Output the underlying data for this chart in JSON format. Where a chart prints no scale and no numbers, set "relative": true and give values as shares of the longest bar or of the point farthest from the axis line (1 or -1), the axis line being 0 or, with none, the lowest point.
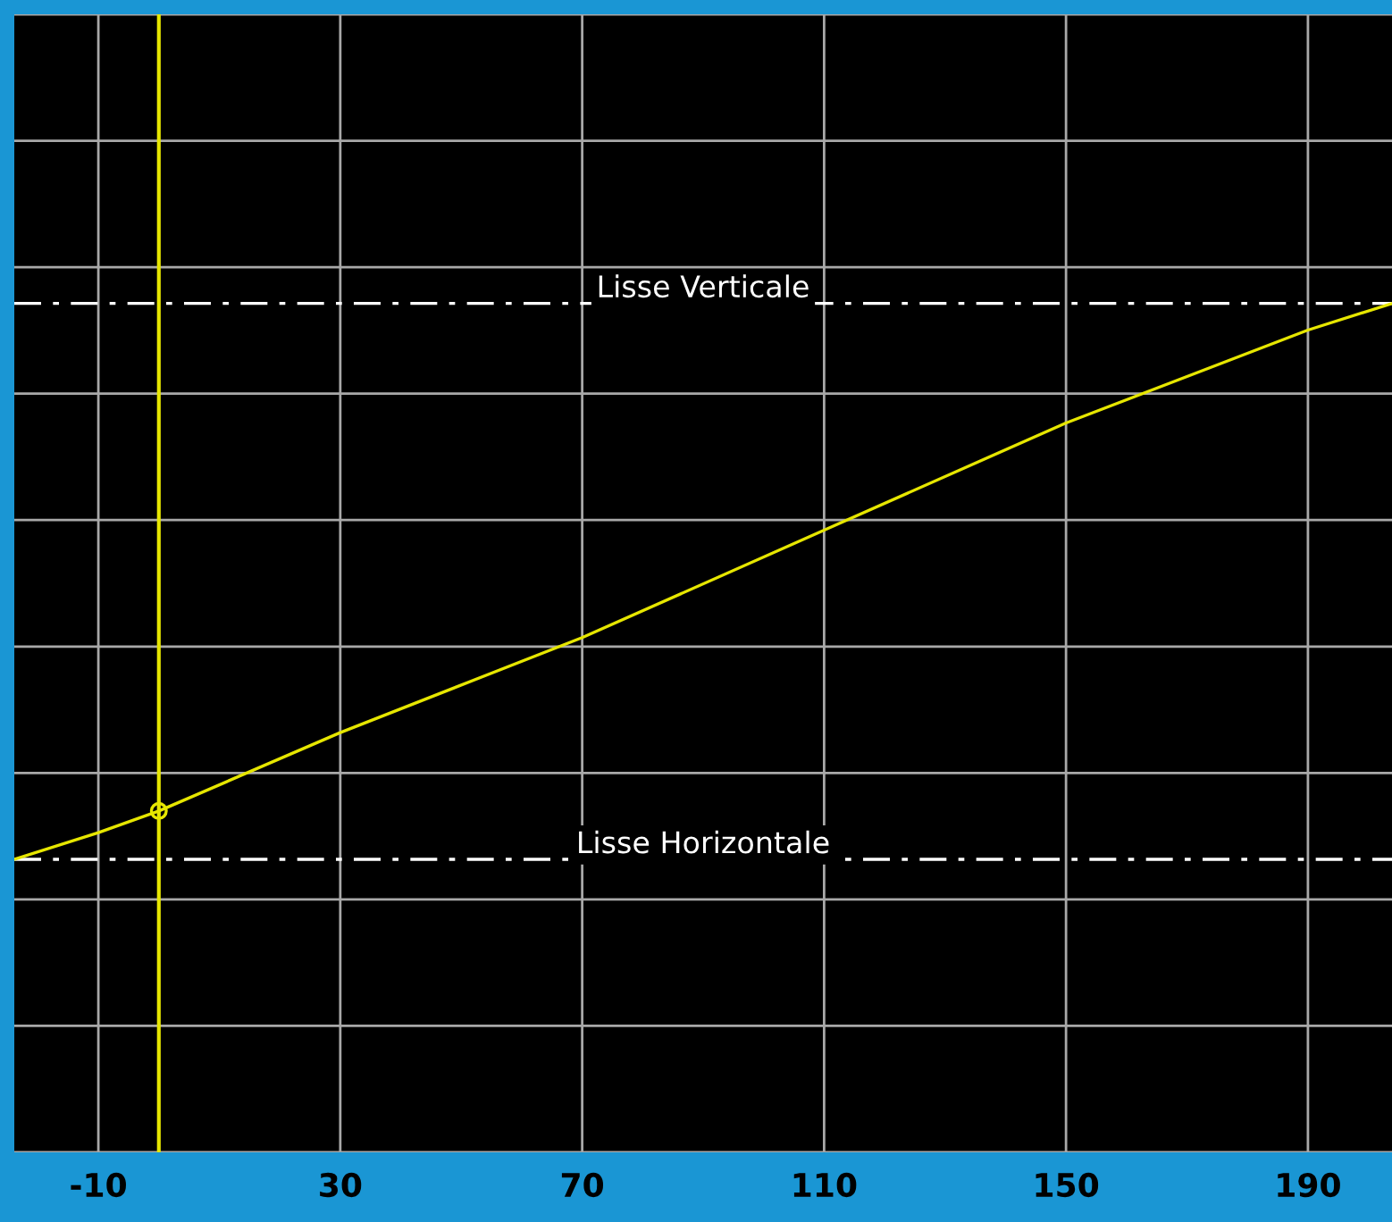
{
  "chart_data": {
    "type": "line",
    "relative": true,
    "xlim": [
      -23.9,
      203.9
    ],
    "xticks": [
      -10,
      30,
      70,
      110,
      150,
      190
    ],
    "grid": true,
    "tick_labels": "x",
    "series": [
      {
        "color": "#e6e600",
        "x": [
          -23.9,
          -10,
          0,
          30,
          70,
          110,
          150,
          190,
          203.9
        ],
        "values": [
          0,
          0.048,
          0.087,
          0.228,
          0.399,
          0.592,
          0.785,
          0.952,
          1
        ]
      },
      {
        "type": "scatter",
        "color": "#e6e600",
        "marker": "circle",
        "x": [
          0
        ],
        "values": [
          0.087
        ]
      }
    ],
    "ref_lines": [
      {
        "axis": "y",
        "value": 1,
        "label": "Lisse Verticale",
        "color": "#ffffff",
        "line_style": "dashed"
      },
      {
        "axis": "y",
        "value": 0,
        "label": "Lisse Horizontale",
        "color": "#ffffff",
        "line_style": "dashed"
      },
      {
        "axis": "x",
        "value": 0,
        "color": "#e6e600",
        "line_style": "solid"
      }
    ]
  }
}
